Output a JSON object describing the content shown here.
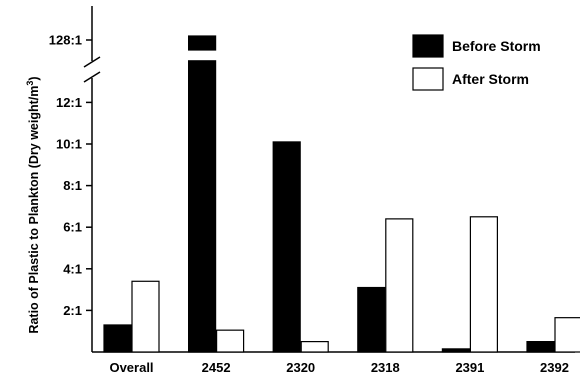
{
  "chart_data": {
    "type": "bar",
    "ylabel": "Ratio of Plastic to Plankton (Dry weight/m",
    "ylabel_superscript": "3",
    "ylabel_close": ")",
    "categories": [
      "Overall",
      "2452",
      "2320",
      "2318",
      "2391",
      "2392"
    ],
    "series": [
      {
        "name": "Before Storm",
        "color": "#000000",
        "values": [
          1.3,
          128,
          10.1,
          3.1,
          0.15,
          0.5
        ]
      },
      {
        "name": "After Storm",
        "color": "#ffffff",
        "values": [
          3.4,
          1.05,
          0.5,
          6.4,
          6.5,
          1.65
        ]
      }
    ],
    "ylim": [
      0,
      14
    ],
    "axis_break": true,
    "yticks": [
      {
        "value": 2,
        "label": "2:1"
      },
      {
        "value": 4,
        "label": "4:1"
      },
      {
        "value": 6,
        "label": "6:1"
      },
      {
        "value": 8,
        "label": "8:1"
      },
      {
        "value": 10,
        "label": "10:1"
      },
      {
        "value": 12,
        "label": "12:1"
      },
      {
        "value": 128,
        "label": "128:1"
      }
    ],
    "legend_position": "top-right"
  }
}
